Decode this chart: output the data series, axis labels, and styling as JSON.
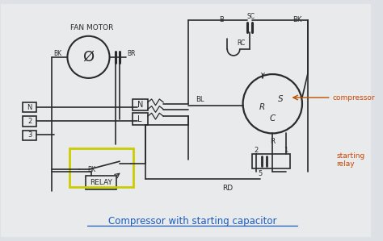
{
  "bg_color": "#dde0e4",
  "paper_color": "#e8eaeb",
  "line_color": "#2a2a2a",
  "title": "Compressor with starting capacitor",
  "title_color": "#1a5bbf",
  "compressor_label": "compressor",
  "compressor_label_color": "#cc4400",
  "starting_relay_label": "starting\nrelay",
  "starting_relay_color": "#cc4400",
  "fan_motor_label": "FAN MOTOR",
  "relay_label": "RELAY",
  "yellow_box_color": "#cccc00",
  "figsize": [
    4.74,
    2.99
  ],
  "dpi": 100
}
